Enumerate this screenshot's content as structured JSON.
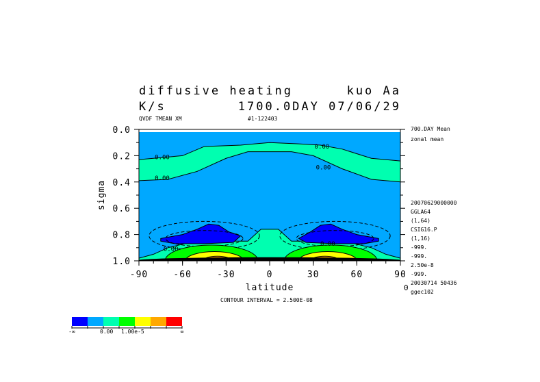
{
  "chart_data": {
    "type": "heatmap",
    "subtype": "filled contour",
    "title_line1_left": "diffusive heating",
    "title_line1_right": "kuo Aa",
    "title_line2_left": "K/s",
    "title_line2_right": "1700.0DAY 07/06/29",
    "subtitle_left": "QVDF TMEAN XM",
    "subtitle_right": "#1-122403",
    "xlabel": "latitude",
    "ylabel": "sigma",
    "xlim": [
      -90,
      90
    ],
    "ylim": [
      0.0,
      1.0
    ],
    "y_inverted": true,
    "xticks": [
      "-90",
      "-60",
      "-30",
      "0",
      "30",
      "60",
      "90"
    ],
    "xtick_values": [
      -90,
      -60,
      -30,
      0,
      30,
      60,
      90
    ],
    "yticks": [
      "0.0",
      "0.2",
      "0.4",
      "0.6",
      "0.8",
      "1.0"
    ],
    "ytick_values": [
      0.0,
      0.2,
      0.4,
      0.6,
      0.8,
      1.0
    ],
    "contour_interval_text": "CONTOUR INTERVAL = 2.500E-08",
    "background_color": "#00a8ff",
    "colorbar": {
      "colors": [
        "#0000ff",
        "#00a8ff",
        "#00ffb0",
        "#00ff00",
        "#ffff00",
        "#ffa800",
        "#ff0000"
      ],
      "labels": [
        "-∞",
        "0.00",
        "1.00e-5",
        "∞"
      ]
    },
    "regions": [
      {
        "color": "#00ffb0",
        "points": [
          [
            -90,
            0.23
          ],
          [
            -60,
            0.2
          ],
          [
            -45,
            0.13
          ],
          [
            -20,
            0.12
          ],
          [
            0,
            0.1
          ],
          [
            20,
            0.11
          ],
          [
            35,
            0.12
          ],
          [
            50,
            0.15
          ],
          [
            70,
            0.22
          ],
          [
            90,
            0.24
          ],
          [
            90,
            0.4
          ],
          [
            70,
            0.38
          ],
          [
            50,
            0.3
          ],
          [
            30,
            0.2
          ],
          [
            15,
            0.17
          ],
          [
            0,
            0.17
          ],
          [
            -15,
            0.17
          ],
          [
            -30,
            0.22
          ],
          [
            -50,
            0.32
          ],
          [
            -70,
            0.38
          ],
          [
            -90,
            0.39
          ]
        ]
      },
      {
        "color": "#00ffb0",
        "points": [
          [
            -90,
            0.98
          ],
          [
            -80,
            0.95
          ],
          [
            -70,
            0.9
          ],
          [
            -55,
            0.86
          ],
          [
            -30,
            0.85
          ],
          [
            -15,
            0.85
          ],
          [
            -10,
            0.8
          ],
          [
            -6,
            0.76
          ],
          [
            6,
            0.76
          ],
          [
            10,
            0.8
          ],
          [
            15,
            0.85
          ],
          [
            30,
            0.85
          ],
          [
            55,
            0.86
          ],
          [
            70,
            0.9
          ],
          [
            80,
            0.95
          ],
          [
            90,
            0.98
          ],
          [
            90,
            1.0
          ],
          [
            -90,
            1.0
          ]
        ]
      },
      {
        "color": "#0000ff",
        "points": [
          [
            -75,
            0.83
          ],
          [
            -60,
            0.8
          ],
          [
            -50,
            0.76
          ],
          [
            -42,
            0.72
          ],
          [
            -35,
            0.73
          ],
          [
            -28,
            0.78
          ],
          [
            -20,
            0.81
          ],
          [
            -25,
            0.86
          ],
          [
            -45,
            0.87
          ],
          [
            -65,
            0.87
          ],
          [
            -75,
            0.85
          ]
        ]
      },
      {
        "color": "#0000ff",
        "points": [
          [
            20,
            0.83
          ],
          [
            28,
            0.78
          ],
          [
            35,
            0.73
          ],
          [
            42,
            0.72
          ],
          [
            50,
            0.76
          ],
          [
            60,
            0.8
          ],
          [
            75,
            0.83
          ],
          [
            75,
            0.85
          ],
          [
            65,
            0.87
          ],
          [
            45,
            0.87
          ],
          [
            25,
            0.86
          ]
        ]
      }
    ],
    "lobes": [
      {
        "color": "#00ff00",
        "lat": -40,
        "sigma": 1.0,
        "half_width": 32,
        "depth": 0.12
      },
      {
        "color": "#ffff00",
        "lat": -38,
        "sigma": 1.0,
        "half_width": 20,
        "depth": 0.07
      },
      {
        "color": "#ffa800",
        "lat": -36,
        "sigma": 1.0,
        "half_width": 10,
        "depth": 0.035
      },
      {
        "color": "#00ff00",
        "lat": 42,
        "sigma": 1.0,
        "half_width": 32,
        "depth": 0.12
      },
      {
        "color": "#ffff00",
        "lat": 40,
        "sigma": 1.0,
        "half_width": 20,
        "depth": 0.07
      },
      {
        "color": "#ffa800",
        "lat": 38,
        "sigma": 1.0,
        "half_width": 10,
        "depth": 0.035
      },
      {
        "color": "#000000",
        "lat": 0,
        "sigma": 1.0,
        "half_width": 92,
        "depth": 0.025
      }
    ],
    "contour_labels": [
      {
        "text": "0.00",
        "lat": -74,
        "sigma": 0.21
      },
      {
        "text": "0.00",
        "lat": -74,
        "sigma": 0.37
      },
      {
        "text": "0.00",
        "lat": 36,
        "sigma": 0.13
      },
      {
        "text": "0.00",
        "lat": 37,
        "sigma": 0.29
      },
      {
        "text": "0.00",
        "lat": -68,
        "sigma": 0.91
      },
      {
        "text": "0.00",
        "lat": 40,
        "sigma": 0.87
      }
    ],
    "negative_contours": [
      {
        "lat": -45,
        "sigma": 0.81,
        "half_width": 38,
        "half_height": 0.11
      },
      {
        "lat": 45,
        "sigma": 0.81,
        "half_width": 38,
        "half_height": 0.11
      }
    ]
  },
  "side_info": [
    "700.DAY Mean",
    "zonal mean",
    "20070629000000",
    "GGLA64",
    "(1,64)",
    "CSIG16.P",
    "(1,16)",
    "-999.",
    "-999.",
    "2.50e-8",
    "-999.",
    "20030714   50436",
    "ggec102"
  ],
  "side_zero": "0"
}
